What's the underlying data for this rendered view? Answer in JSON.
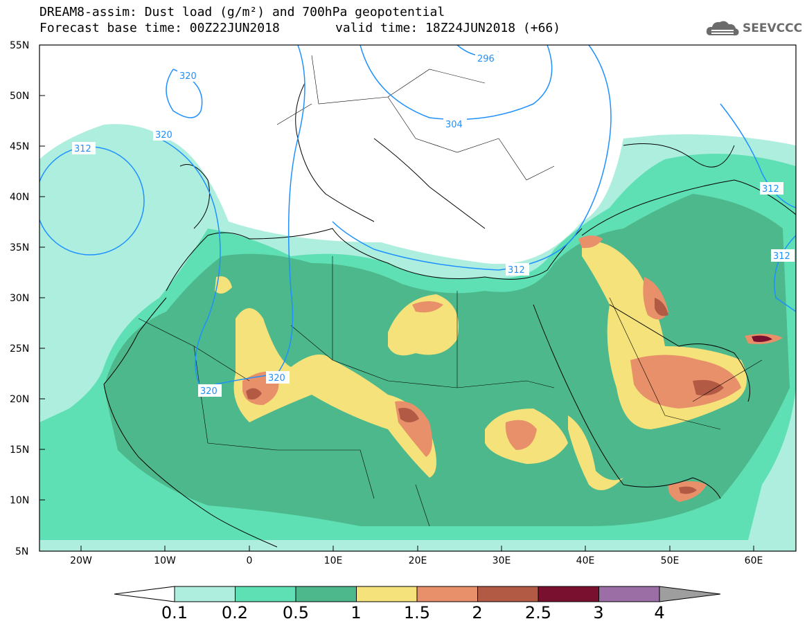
{
  "title": {
    "line1": "DREAM8-assim: Dust load (g/m²) and 700hPa geopotential",
    "line2": "Forecast base time: 00Z22JUN2018",
    "valid": "valid time: 18Z24JUN2018 (+66)"
  },
  "logo": {
    "text": "SEEVCCC",
    "icon": "cloud-logo-icon"
  },
  "axes": {
    "lat_labels": [
      "55N",
      "50N",
      "45N",
      "40N",
      "35N",
      "30N",
      "25N",
      "20N",
      "15N",
      "10N",
      "5N"
    ],
    "lon_labels": [
      "20W",
      "10W",
      "0",
      "10E",
      "20E",
      "30E",
      "40E",
      "50E",
      "60E"
    ]
  },
  "contour_labels": [
    "296",
    "304",
    "312",
    "312",
    "312",
    "312",
    "320",
    "320",
    "320",
    "320"
  ],
  "colorbar": {
    "labels": [
      "0.1",
      "0.2",
      "0.5",
      "1",
      "1.5",
      "2",
      "2.5",
      "3",
      "4"
    ],
    "colors": [
      "#aeeede",
      "#5fe0b4",
      "#4db88c",
      "#f5e27a",
      "#e8906a",
      "#b35a45",
      "#7a1030",
      "#9c6ea6",
      "#9e9e9e"
    ]
  },
  "colors": {
    "contour": "#1e90ff",
    "coast": "#000000",
    "background": "#ffffff"
  }
}
